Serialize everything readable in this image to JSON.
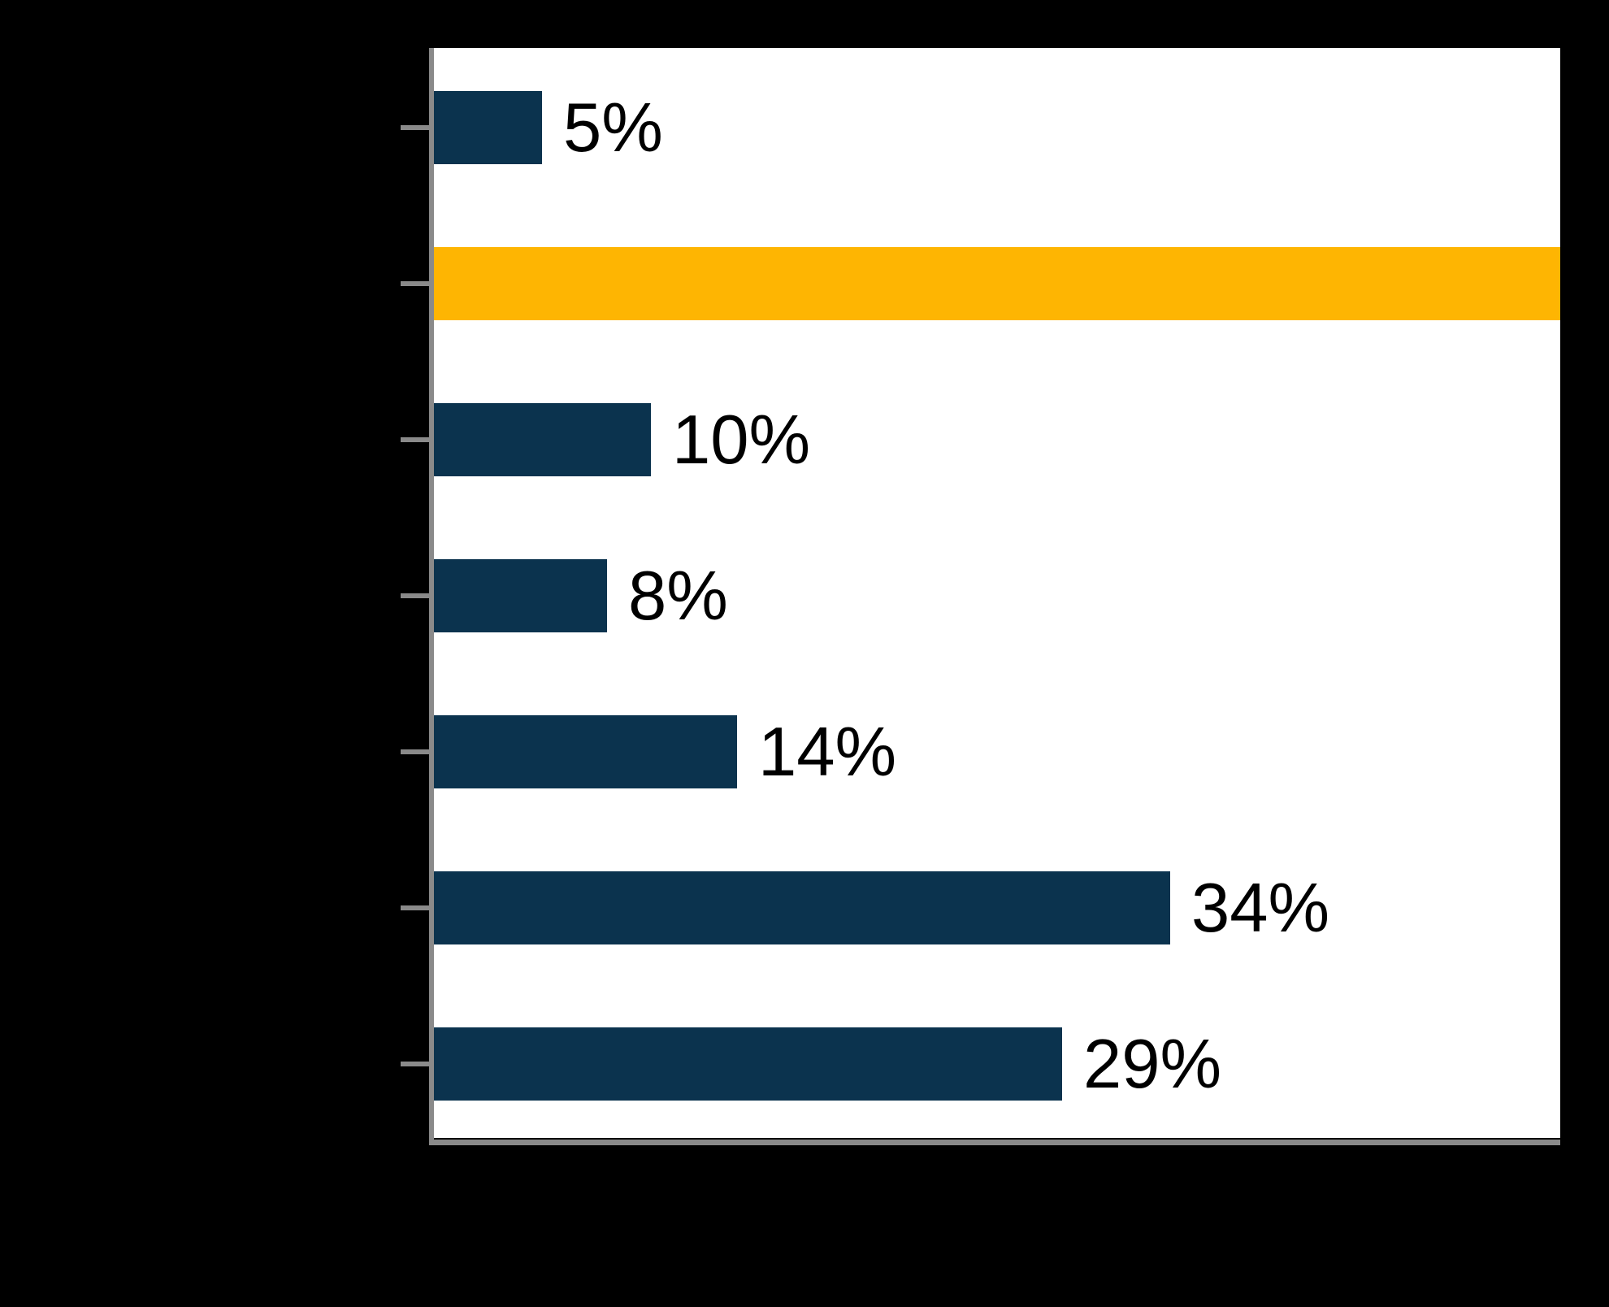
{
  "chart_data": {
    "type": "bar",
    "orientation": "horizontal",
    "title": "",
    "xlabel": "",
    "ylabel": "",
    "xlim": [
      0,
      52
    ],
    "grid": false,
    "legend": null,
    "x_tick_labels_visible": false,
    "y_tick_labels_visible": false,
    "tick_count": 7,
    "bars": [
      {
        "value": 5,
        "label": "5%",
        "color": "#0b334e"
      },
      {
        "value": 52,
        "label": "",
        "color": "#feb502"
      },
      {
        "value": 10,
        "label": "10%",
        "color": "#0b334e"
      },
      {
        "value": 8,
        "label": "8%",
        "color": "#0b334e"
      },
      {
        "value": 14,
        "label": "14%",
        "color": "#0b334e"
      },
      {
        "value": 34,
        "label": "34%",
        "color": "#0b334e"
      },
      {
        "value": 29,
        "label": "29%",
        "color": "#0b334e"
      }
    ]
  },
  "colors": {
    "background": "#000000",
    "plot_background": "#ffffff",
    "bar_navy": "#0b334e",
    "bar_highlight_orange": "#feb502",
    "axis_gray": "#8a8a8a",
    "data_label_text": "#000000"
  }
}
